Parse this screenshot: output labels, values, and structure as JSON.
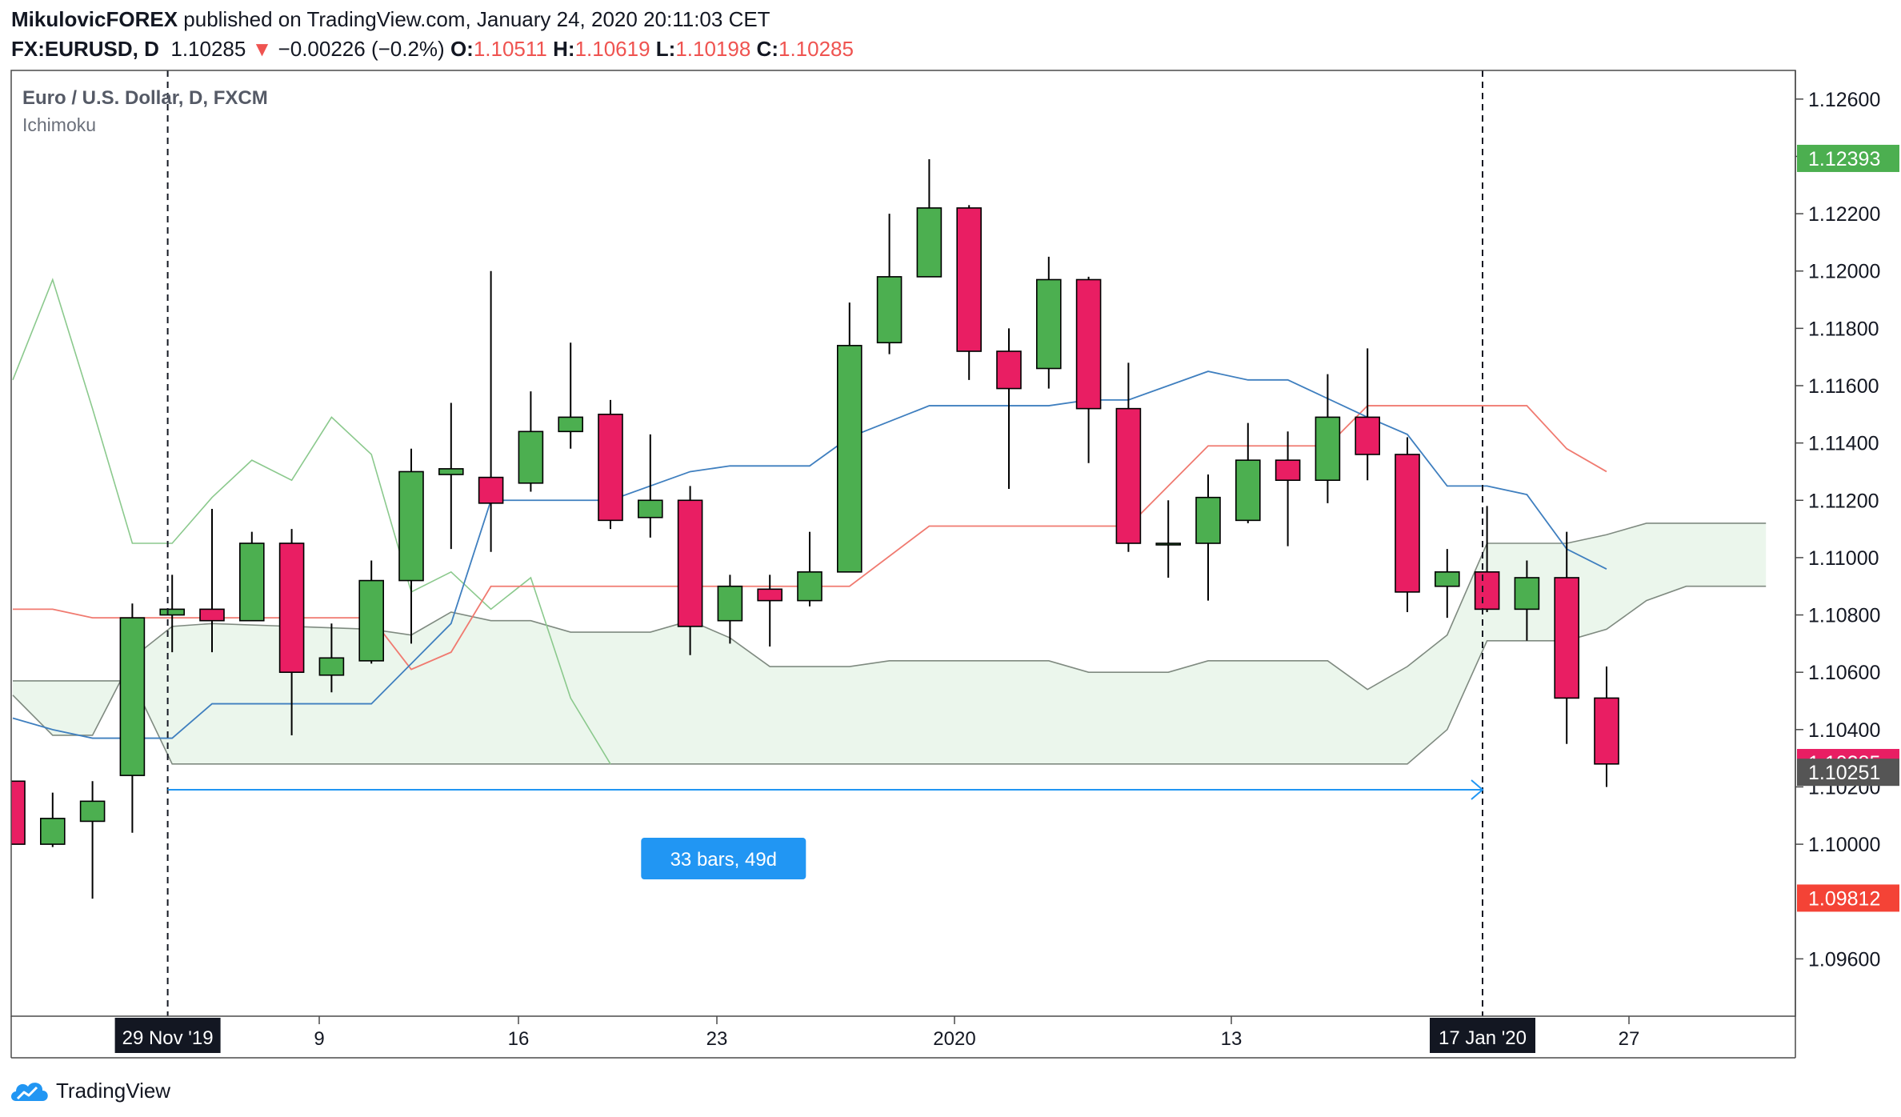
{
  "header": {
    "author": "MikulovicFOREX",
    "published_text": " published on TradingView.com, January 24, 2020 20:11:03 CET",
    "symbol": "FX:EURUSD, D",
    "last": "1.10285",
    "arrow": "▼",
    "change": "−0.00226 (−0.2%)",
    "o_label": "O:",
    "o": "1.10511",
    "h_label": "H:",
    "h": "1.10619",
    "l_label": "L:",
    "l": "1.10198",
    "c_label": "C:",
    "c": "1.10285"
  },
  "chart_title": "Euro / U.S. Dollar, D, FXCM",
  "indicator_label": "Ichimoku",
  "footer": {
    "logo_text": "TradingView",
    "logo_icon": "tradingview-cloud-icon"
  },
  "colors": {
    "up": "#4caf50",
    "down": "#e91e63",
    "tenkan": "#2962ff",
    "kijun": "#ef5350",
    "chikou": "#4caf50",
    "cloud": "#e8f5e9",
    "measure": "#2196f3"
  },
  "chart_data": {
    "type": "candlestick",
    "ylim": [
      1.094,
      1.127
    ],
    "y_ticks": [
      "1.12600",
      "1.12400",
      "1.12200",
      "1.12000",
      "1.11800",
      "1.11600",
      "1.11400",
      "1.11200",
      "1.11000",
      "1.10800",
      "1.10600",
      "1.10400",
      "1.10200",
      "1.10000",
      "1.09600"
    ],
    "x_ticks": [
      "9",
      "16",
      "23",
      "2020",
      "13",
      "27"
    ],
    "x_axis_highlights": [
      "29 Nov '19",
      "17 Jan '20"
    ],
    "price_labels": [
      {
        "value": 1.12393,
        "text": "1.12393",
        "color": "#4caf50"
      },
      {
        "value": 1.10285,
        "text": "1.10285",
        "color": "#e91e63"
      },
      {
        "value": 1.10251,
        "text": "1.10251",
        "color": "#555555"
      },
      {
        "value": 1.09812,
        "text": "1.09812",
        "color": "#f44336"
      }
    ],
    "measure_label": "33 bars, 49d",
    "candles": [
      {
        "o": 1.1022,
        "h": 1.1022,
        "l": 1.1,
        "c": 1.1
      },
      {
        "o": 1.1,
        "h": 1.1018,
        "l": 1.0999,
        "c": 1.1009
      },
      {
        "o": 1.1008,
        "h": 1.1022,
        "l": 1.0981,
        "c": 1.1015
      },
      {
        "o": 1.1024,
        "h": 1.1084,
        "l": 1.1004,
        "c": 1.1079
      },
      {
        "o": 1.108,
        "h": 1.1094,
        "l": 1.1067,
        "c": 1.1082
      },
      {
        "o": 1.1082,
        "h": 1.1117,
        "l": 1.1067,
        "c": 1.1078
      },
      {
        "o": 1.1078,
        "h": 1.1109,
        "l": 1.1078,
        "c": 1.1105
      },
      {
        "o": 1.1105,
        "h": 1.111,
        "l": 1.1038,
        "c": 1.106
      },
      {
        "o": 1.1059,
        "h": 1.1077,
        "l": 1.1053,
        "c": 1.1065
      },
      {
        "o": 1.1064,
        "h": 1.1099,
        "l": 1.1063,
        "c": 1.1092
      },
      {
        "o": 1.1092,
        "h": 1.1138,
        "l": 1.107,
        "c": 1.113
      },
      {
        "o": 1.1129,
        "h": 1.1154,
        "l": 1.1103,
        "c": 1.1131
      },
      {
        "o": 1.1128,
        "h": 1.12,
        "l": 1.1102,
        "c": 1.1119
      },
      {
        "o": 1.1126,
        "h": 1.1158,
        "l": 1.1123,
        "c": 1.1144
      },
      {
        "o": 1.1144,
        "h": 1.1175,
        "l": 1.1138,
        "c": 1.1149
      },
      {
        "o": 1.115,
        "h": 1.1155,
        "l": 1.111,
        "c": 1.1113
      },
      {
        "o": 1.1114,
        "h": 1.1143,
        "l": 1.1107,
        "c": 1.112
      },
      {
        "o": 1.112,
        "h": 1.1125,
        "l": 1.1066,
        "c": 1.1076
      },
      {
        "o": 1.1078,
        "h": 1.1094,
        "l": 1.107,
        "c": 1.109
      },
      {
        "o": 1.1089,
        "h": 1.1094,
        "l": 1.1069,
        "c": 1.1085
      },
      {
        "o": 1.1085,
        "h": 1.1109,
        "l": 1.1083,
        "c": 1.1095
      },
      {
        "o": 1.1095,
        "h": 1.1189,
        "l": 1.1095,
        "c": 1.1174
      },
      {
        "o": 1.1175,
        "h": 1.122,
        "l": 1.1171,
        "c": 1.1198
      },
      {
        "o": 1.1198,
        "h": 1.1239,
        "l": 1.1198,
        "c": 1.1222
      },
      {
        "o": 1.1222,
        "h": 1.1223,
        "l": 1.1162,
        "c": 1.1172
      },
      {
        "o": 1.1172,
        "h": 1.118,
        "l": 1.1124,
        "c": 1.1159
      },
      {
        "o": 1.1166,
        "h": 1.1205,
        "l": 1.1159,
        "c": 1.1197
      },
      {
        "o": 1.1197,
        "h": 1.1198,
        "l": 1.1133,
        "c": 1.1152
      },
      {
        "o": 1.1152,
        "h": 1.1168,
        "l": 1.1102,
        "c": 1.1105
      },
      {
        "o": 1.1105,
        "h": 1.112,
        "l": 1.1093,
        "c": 1.1105
      },
      {
        "o": 1.1105,
        "h": 1.1129,
        "l": 1.1085,
        "c": 1.1121
      },
      {
        "o": 1.1113,
        "h": 1.1147,
        "l": 1.1112,
        "c": 1.1134
      },
      {
        "o": 1.1134,
        "h": 1.1144,
        "l": 1.1104,
        "c": 1.1127
      },
      {
        "o": 1.1127,
        "h": 1.1164,
        "l": 1.1119,
        "c": 1.1149
      },
      {
        "o": 1.1149,
        "h": 1.1173,
        "l": 1.1127,
        "c": 1.1136
      },
      {
        "o": 1.1136,
        "h": 1.1142,
        "l": 1.1081,
        "c": 1.1088
      },
      {
        "o": 1.109,
        "h": 1.1103,
        "l": 1.1079,
        "c": 1.1095
      },
      {
        "o": 1.1095,
        "h": 1.1118,
        "l": 1.1081,
        "c": 1.1082
      },
      {
        "o": 1.1082,
        "h": 1.1099,
        "l": 1.1071,
        "c": 1.1093
      },
      {
        "o": 1.1093,
        "h": 1.1109,
        "l": 1.1035,
        "c": 1.1051
      },
      {
        "o": 1.1051,
        "h": 1.1062,
        "l": 1.102,
        "c": 1.1028
      }
    ],
    "tenkan": [
      {
        "i": 0,
        "v": 1.1044
      },
      {
        "i": 1,
        "v": 1.104
      },
      {
        "i": 2,
        "v": 1.1037
      },
      {
        "i": 4,
        "v": 1.1037
      },
      {
        "i": 5,
        "v": 1.1049
      },
      {
        "i": 9,
        "v": 1.1049
      },
      {
        "i": 11,
        "v": 1.1077
      },
      {
        "i": 12,
        "v": 1.112
      },
      {
        "i": 15,
        "v": 1.112
      },
      {
        "i": 17,
        "v": 1.113
      },
      {
        "i": 18,
        "v": 1.1132
      },
      {
        "i": 20,
        "v": 1.1132
      },
      {
        "i": 21,
        "v": 1.1142
      },
      {
        "i": 23,
        "v": 1.1153
      },
      {
        "i": 26,
        "v": 1.1153
      },
      {
        "i": 27,
        "v": 1.1155
      },
      {
        "i": 28,
        "v": 1.1155
      },
      {
        "i": 30,
        "v": 1.1165
      },
      {
        "i": 31,
        "v": 1.1162
      },
      {
        "i": 32,
        "v": 1.1162
      },
      {
        "i": 34,
        "v": 1.1149
      },
      {
        "i": 35,
        "v": 1.1143
      },
      {
        "i": 36,
        "v": 1.1125
      },
      {
        "i": 37,
        "v": 1.1125
      },
      {
        "i": 38,
        "v": 1.1122
      },
      {
        "i": 39,
        "v": 1.1103
      },
      {
        "i": 40,
        "v": 1.1096
      }
    ],
    "kijun": [
      {
        "i": 0,
        "v": 1.1082
      },
      {
        "i": 1,
        "v": 1.1082
      },
      {
        "i": 2,
        "v": 1.1079
      },
      {
        "i": 9,
        "v": 1.1079
      },
      {
        "i": 10,
        "v": 1.1061
      },
      {
        "i": 11,
        "v": 1.1067
      },
      {
        "i": 12,
        "v": 1.109
      },
      {
        "i": 21,
        "v": 1.109
      },
      {
        "i": 23,
        "v": 1.1111
      },
      {
        "i": 28,
        "v": 1.1111
      },
      {
        "i": 30,
        "v": 1.1139
      },
      {
        "i": 33,
        "v": 1.1139
      },
      {
        "i": 34,
        "v": 1.1153
      },
      {
        "i": 38,
        "v": 1.1153
      },
      {
        "i": 39,
        "v": 1.1138
      },
      {
        "i": 40,
        "v": 1.113
      }
    ],
    "chikou": [
      {
        "i": 0,
        "v": 1.1162
      },
      {
        "i": 1,
        "v": 1.1197
      },
      {
        "i": 2,
        "v": 1.1152
      },
      {
        "i": 3,
        "v": 1.1105
      },
      {
        "i": 4,
        "v": 1.1105
      },
      {
        "i": 5,
        "v": 1.1121
      },
      {
        "i": 6,
        "v": 1.1134
      },
      {
        "i": 7,
        "v": 1.1127
      },
      {
        "i": 8,
        "v": 1.1149
      },
      {
        "i": 9,
        "v": 1.1136
      },
      {
        "i": 10,
        "v": 1.1088
      },
      {
        "i": 11,
        "v": 1.1095
      },
      {
        "i": 12,
        "v": 1.1082
      },
      {
        "i": 13,
        "v": 1.1093
      },
      {
        "i": 14,
        "v": 1.1051
      },
      {
        "i": 15,
        "v": 1.1028
      }
    ],
    "senkou_a": [
      {
        "i": 0,
        "v": 1.1052
      },
      {
        "i": 1,
        "v": 1.1038
      },
      {
        "i": 2,
        "v": 1.1038
      },
      {
        "i": 3,
        "v": 1.1065
      },
      {
        "i": 4,
        "v": 1.1076
      },
      {
        "i": 5,
        "v": 1.1077
      },
      {
        "i": 9,
        "v": 1.1075
      },
      {
        "i": 10,
        "v": 1.1073
      },
      {
        "i": 11,
        "v": 1.1081
      },
      {
        "i": 12,
        "v": 1.1078
      },
      {
        "i": 13,
        "v": 1.1078
      },
      {
        "i": 14,
        "v": 1.1074
      },
      {
        "i": 16,
        "v": 1.1074
      },
      {
        "i": 17,
        "v": 1.1078
      },
      {
        "i": 18,
        "v": 1.1072
      },
      {
        "i": 19,
        "v": 1.1062
      },
      {
        "i": 21,
        "v": 1.1062
      },
      {
        "i": 22,
        "v": 1.1064
      },
      {
        "i": 26,
        "v": 1.1064
      },
      {
        "i": 27,
        "v": 1.106
      },
      {
        "i": 29,
        "v": 1.106
      },
      {
        "i": 30,
        "v": 1.1064
      },
      {
        "i": 33,
        "v": 1.1064
      },
      {
        "i": 34,
        "v": 1.1054
      },
      {
        "i": 35,
        "v": 1.1062
      },
      {
        "i": 36,
        "v": 1.1073
      },
      {
        "i": 37,
        "v": 1.1105
      },
      {
        "i": 39,
        "v": 1.1105
      },
      {
        "i": 40,
        "v": 1.1108
      },
      {
        "i": 41,
        "v": 1.1112
      },
      {
        "i": 44,
        "v": 1.1112
      }
    ],
    "senkou_b": [
      {
        "i": 0,
        "v": 1.1057
      },
      {
        "i": 1,
        "v": 1.1057
      },
      {
        "i": 2,
        "v": 1.1057
      },
      {
        "i": 3,
        "v": 1.1057
      },
      {
        "i": 4,
        "v": 1.1028
      },
      {
        "i": 35,
        "v": 1.1028
      },
      {
        "i": 36,
        "v": 1.104
      },
      {
        "i": 37,
        "v": 1.1071
      },
      {
        "i": 39,
        "v": 1.1071
      },
      {
        "i": 40,
        "v": 1.1075
      },
      {
        "i": 41,
        "v": 1.1085
      },
      {
        "i": 42,
        "v": 1.109
      },
      {
        "i": 44,
        "v": 1.109
      }
    ],
    "vlines": [
      {
        "i": 2
      },
      {
        "i": 35
      }
    ],
    "measure": {
      "from": 2,
      "to": 35,
      "y": 1.1019
    }
  }
}
